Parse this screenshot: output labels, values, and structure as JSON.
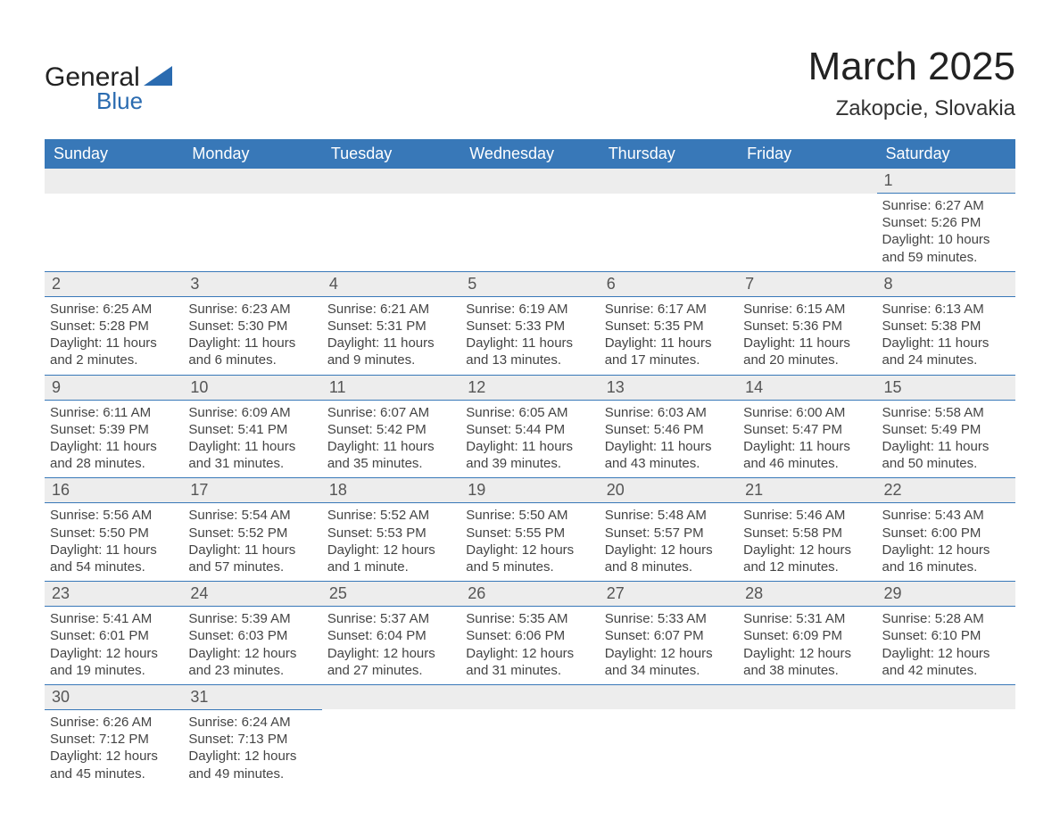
{
  "logo": {
    "text1": "General",
    "text2": "Blue",
    "tri_color": "#2a6bb0"
  },
  "title": "March 2025",
  "location": "Zakopcie, Slovakia",
  "colors": {
    "header_bg": "#3878b8",
    "header_text": "#ffffff",
    "daynum_bg": "#ededed",
    "row_border": "#3878b8",
    "body_text": "#444444",
    "background": "#ffffff"
  },
  "fonts": {
    "title_size_pt": 33,
    "location_size_pt": 18,
    "header_size_pt": 14,
    "cell_size_pt": 11
  },
  "weekdays": [
    "Sunday",
    "Monday",
    "Tuesday",
    "Wednesday",
    "Thursday",
    "Friday",
    "Saturday"
  ],
  "weeks": [
    [
      null,
      null,
      null,
      null,
      null,
      null,
      {
        "n": "1",
        "sr": "Sunrise: 6:27 AM",
        "ss": "Sunset: 5:26 PM",
        "d1": "Daylight: 10 hours",
        "d2": "and 59 minutes."
      }
    ],
    [
      {
        "n": "2",
        "sr": "Sunrise: 6:25 AM",
        "ss": "Sunset: 5:28 PM",
        "d1": "Daylight: 11 hours",
        "d2": "and 2 minutes."
      },
      {
        "n": "3",
        "sr": "Sunrise: 6:23 AM",
        "ss": "Sunset: 5:30 PM",
        "d1": "Daylight: 11 hours",
        "d2": "and 6 minutes."
      },
      {
        "n": "4",
        "sr": "Sunrise: 6:21 AM",
        "ss": "Sunset: 5:31 PM",
        "d1": "Daylight: 11 hours",
        "d2": "and 9 minutes."
      },
      {
        "n": "5",
        "sr": "Sunrise: 6:19 AM",
        "ss": "Sunset: 5:33 PM",
        "d1": "Daylight: 11 hours",
        "d2": "and 13 minutes."
      },
      {
        "n": "6",
        "sr": "Sunrise: 6:17 AM",
        "ss": "Sunset: 5:35 PM",
        "d1": "Daylight: 11 hours",
        "d2": "and 17 minutes."
      },
      {
        "n": "7",
        "sr": "Sunrise: 6:15 AM",
        "ss": "Sunset: 5:36 PM",
        "d1": "Daylight: 11 hours",
        "d2": "and 20 minutes."
      },
      {
        "n": "8",
        "sr": "Sunrise: 6:13 AM",
        "ss": "Sunset: 5:38 PM",
        "d1": "Daylight: 11 hours",
        "d2": "and 24 minutes."
      }
    ],
    [
      {
        "n": "9",
        "sr": "Sunrise: 6:11 AM",
        "ss": "Sunset: 5:39 PM",
        "d1": "Daylight: 11 hours",
        "d2": "and 28 minutes."
      },
      {
        "n": "10",
        "sr": "Sunrise: 6:09 AM",
        "ss": "Sunset: 5:41 PM",
        "d1": "Daylight: 11 hours",
        "d2": "and 31 minutes."
      },
      {
        "n": "11",
        "sr": "Sunrise: 6:07 AM",
        "ss": "Sunset: 5:42 PM",
        "d1": "Daylight: 11 hours",
        "d2": "and 35 minutes."
      },
      {
        "n": "12",
        "sr": "Sunrise: 6:05 AM",
        "ss": "Sunset: 5:44 PM",
        "d1": "Daylight: 11 hours",
        "d2": "and 39 minutes."
      },
      {
        "n": "13",
        "sr": "Sunrise: 6:03 AM",
        "ss": "Sunset: 5:46 PM",
        "d1": "Daylight: 11 hours",
        "d2": "and 43 minutes."
      },
      {
        "n": "14",
        "sr": "Sunrise: 6:00 AM",
        "ss": "Sunset: 5:47 PM",
        "d1": "Daylight: 11 hours",
        "d2": "and 46 minutes."
      },
      {
        "n": "15",
        "sr": "Sunrise: 5:58 AM",
        "ss": "Sunset: 5:49 PM",
        "d1": "Daylight: 11 hours",
        "d2": "and 50 minutes."
      }
    ],
    [
      {
        "n": "16",
        "sr": "Sunrise: 5:56 AM",
        "ss": "Sunset: 5:50 PM",
        "d1": "Daylight: 11 hours",
        "d2": "and 54 minutes."
      },
      {
        "n": "17",
        "sr": "Sunrise: 5:54 AM",
        "ss": "Sunset: 5:52 PM",
        "d1": "Daylight: 11 hours",
        "d2": "and 57 minutes."
      },
      {
        "n": "18",
        "sr": "Sunrise: 5:52 AM",
        "ss": "Sunset: 5:53 PM",
        "d1": "Daylight: 12 hours",
        "d2": "and 1 minute."
      },
      {
        "n": "19",
        "sr": "Sunrise: 5:50 AM",
        "ss": "Sunset: 5:55 PM",
        "d1": "Daylight: 12 hours",
        "d2": "and 5 minutes."
      },
      {
        "n": "20",
        "sr": "Sunrise: 5:48 AM",
        "ss": "Sunset: 5:57 PM",
        "d1": "Daylight: 12 hours",
        "d2": "and 8 minutes."
      },
      {
        "n": "21",
        "sr": "Sunrise: 5:46 AM",
        "ss": "Sunset: 5:58 PM",
        "d1": "Daylight: 12 hours",
        "d2": "and 12 minutes."
      },
      {
        "n": "22",
        "sr": "Sunrise: 5:43 AM",
        "ss": "Sunset: 6:00 PM",
        "d1": "Daylight: 12 hours",
        "d2": "and 16 minutes."
      }
    ],
    [
      {
        "n": "23",
        "sr": "Sunrise: 5:41 AM",
        "ss": "Sunset: 6:01 PM",
        "d1": "Daylight: 12 hours",
        "d2": "and 19 minutes."
      },
      {
        "n": "24",
        "sr": "Sunrise: 5:39 AM",
        "ss": "Sunset: 6:03 PM",
        "d1": "Daylight: 12 hours",
        "d2": "and 23 minutes."
      },
      {
        "n": "25",
        "sr": "Sunrise: 5:37 AM",
        "ss": "Sunset: 6:04 PM",
        "d1": "Daylight: 12 hours",
        "d2": "and 27 minutes."
      },
      {
        "n": "26",
        "sr": "Sunrise: 5:35 AM",
        "ss": "Sunset: 6:06 PM",
        "d1": "Daylight: 12 hours",
        "d2": "and 31 minutes."
      },
      {
        "n": "27",
        "sr": "Sunrise: 5:33 AM",
        "ss": "Sunset: 6:07 PM",
        "d1": "Daylight: 12 hours",
        "d2": "and 34 minutes."
      },
      {
        "n": "28",
        "sr": "Sunrise: 5:31 AM",
        "ss": "Sunset: 6:09 PM",
        "d1": "Daylight: 12 hours",
        "d2": "and 38 minutes."
      },
      {
        "n": "29",
        "sr": "Sunrise: 5:28 AM",
        "ss": "Sunset: 6:10 PM",
        "d1": "Daylight: 12 hours",
        "d2": "and 42 minutes."
      }
    ],
    [
      {
        "n": "30",
        "sr": "Sunrise: 6:26 AM",
        "ss": "Sunset: 7:12 PM",
        "d1": "Daylight: 12 hours",
        "d2": "and 45 minutes."
      },
      {
        "n": "31",
        "sr": "Sunrise: 6:24 AM",
        "ss": "Sunset: 7:13 PM",
        "d1": "Daylight: 12 hours",
        "d2": "and 49 minutes."
      },
      null,
      null,
      null,
      null,
      null
    ]
  ]
}
